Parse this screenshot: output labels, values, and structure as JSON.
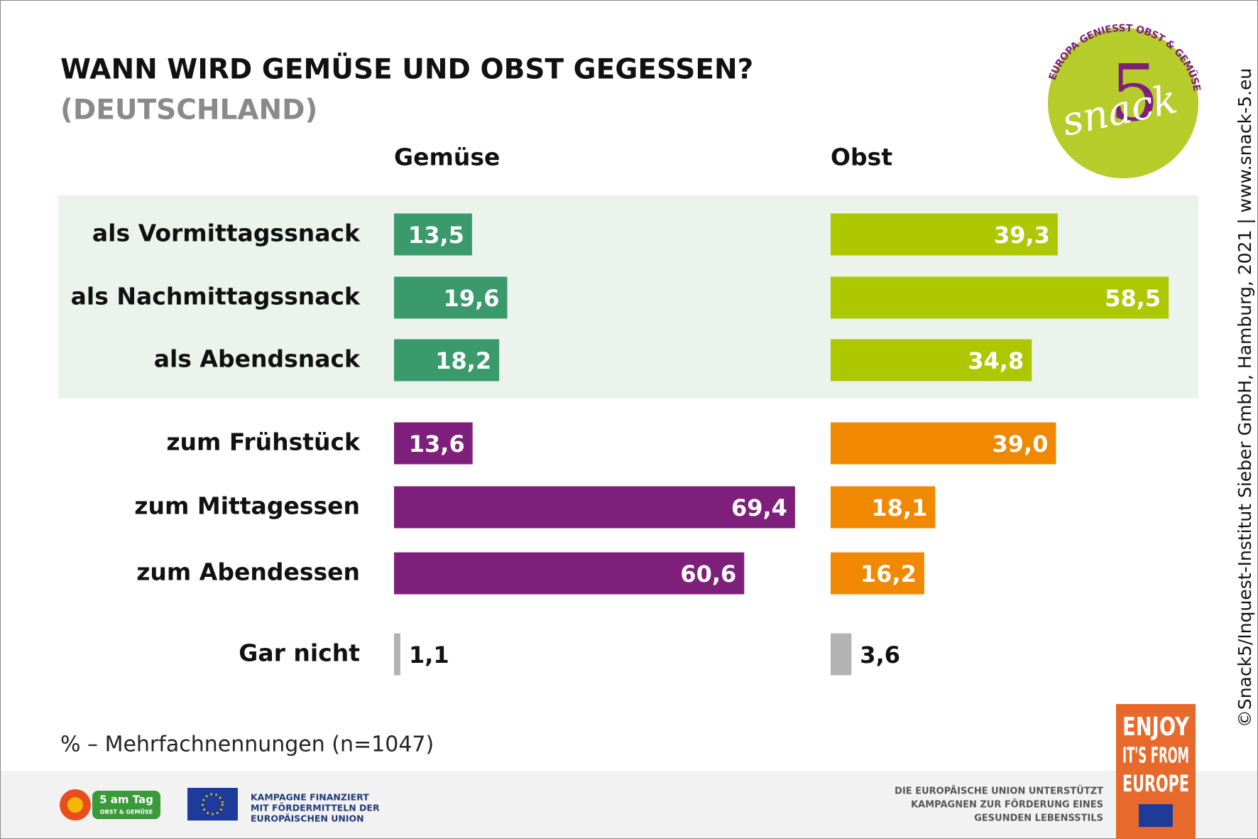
{
  "chart_data": {
    "type": "bar",
    "orientation": "horizontal",
    "title": "WANN WIRD GEMÜSE UND OBST GEGESSEN?",
    "subtitle": "(DEUTSCHLAND)",
    "categories": [
      "als Vormittagssnack",
      "als Nachmittagssnack",
      "als Abendsnack",
      "zum Frühstück",
      "zum Mittagessen",
      "zum Abendessen",
      "Gar nicht"
    ],
    "series": [
      {
        "name": "Gemüse",
        "values": [
          13.5,
          19.6,
          18.2,
          13.6,
          69.4,
          60.6,
          1.1
        ],
        "value_labels": [
          "13,5",
          "19,6",
          "18,2",
          "13,6",
          "69,4",
          "60,6",
          "1,1"
        ],
        "colors": [
          "#3a9a6c",
          "#3a9a6c",
          "#3a9a6c",
          "#7f1f7c",
          "#7f1f7c",
          "#7f1f7c",
          "#b3b3b3"
        ]
      },
      {
        "name": "Obst",
        "values": [
          39.3,
          58.5,
          34.8,
          39.0,
          18.1,
          16.2,
          3.6
        ],
        "value_labels": [
          "39,3",
          "58,5",
          "34,8",
          "39,0",
          "18,1",
          "16,2",
          "3,6"
        ],
        "colors": [
          "#adc700",
          "#adc700",
          "#adc700",
          "#f08800",
          "#f08800",
          "#f08800",
          "#b3b3b3"
        ]
      }
    ],
    "note": "% – Mehrfachnennungen (n=1047)"
  },
  "credit": "©Snack5/Inquest-Institut Sieber GmbH, Hamburg, 2021 | www.snack-5.eu",
  "logos": {
    "snack5": {
      "ring": "EUROPA GENIESST OBST & GEMÜSE",
      "word": "snack",
      "number": "5"
    },
    "five_a_day": {
      "name": "5 am Tag",
      "sub": "OBST & GEMÜSE"
    },
    "eu_funding": [
      "KAMPAGNE FINANZIERT",
      "MIT FÖRDERMITTELN DER",
      "EUROPÄISCHEN UNION"
    ],
    "eu_support": [
      "DIE EUROPÄISCHE UNION UNTERSTÜTZT",
      "KAMPAGNEN ZUR FÖRDERUNG EINES",
      "GESUNDEN LEBENSSTILS"
    ],
    "enjoy": [
      "ENJOY",
      "IT'S FROM",
      "EUROPE"
    ]
  }
}
